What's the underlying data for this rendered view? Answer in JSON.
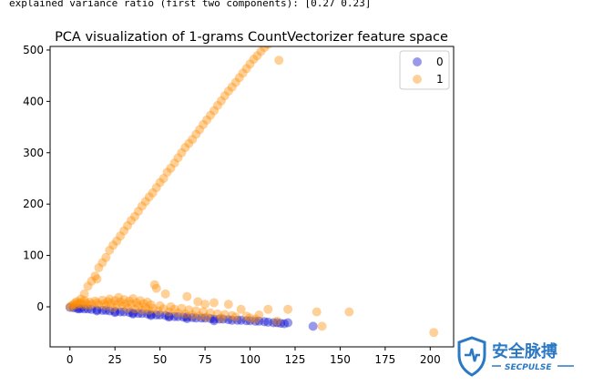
{
  "console": {
    "text": "explained variance ratio (first two components): [0.27 0.23]"
  },
  "watermark": {
    "main": "安全脉搏",
    "sub": "SECPULSE"
  },
  "colors": {
    "series0": "#0000cc",
    "series1": "#ff8c00",
    "axis": "#000000"
  },
  "chart_data": {
    "type": "scatter",
    "title": "PCA visualization of 1-grams CountVectorizer feature space",
    "xlabel": "",
    "ylabel": "",
    "xlim": [
      -11,
      213
    ],
    "ylim": [
      -78,
      507
    ],
    "xticks": [
      0,
      25,
      50,
      75,
      100,
      125,
      150,
      175,
      200
    ],
    "yticks": [
      0,
      100,
      200,
      300,
      400,
      500
    ],
    "grid": false,
    "legend": "top-right",
    "legend_entries": [
      "0",
      "1"
    ],
    "series": [
      {
        "name": "0",
        "color": "#0000cc",
        "alpha": 0.4,
        "points": [
          [
            0,
            -1
          ],
          [
            2,
            -2
          ],
          [
            4,
            -3
          ],
          [
            6,
            -3
          ],
          [
            8,
            -4
          ],
          [
            10,
            -4
          ],
          [
            12,
            -5
          ],
          [
            15,
            -6
          ],
          [
            18,
            -7
          ],
          [
            20,
            -7
          ],
          [
            22,
            -8
          ],
          [
            25,
            -9
          ],
          [
            28,
            -10
          ],
          [
            30,
            -10
          ],
          [
            33,
            -11
          ],
          [
            35,
            -12
          ],
          [
            38,
            -13
          ],
          [
            40,
            -13
          ],
          [
            43,
            -14
          ],
          [
            45,
            -15
          ],
          [
            48,
            -16
          ],
          [
            50,
            -16
          ],
          [
            53,
            -17
          ],
          [
            55,
            -18
          ],
          [
            58,
            -19
          ],
          [
            60,
            -19
          ],
          [
            63,
            -20
          ],
          [
            65,
            -20
          ],
          [
            68,
            -21
          ],
          [
            70,
            -22
          ],
          [
            73,
            -22
          ],
          [
            75,
            -22
          ],
          [
            78,
            -23
          ],
          [
            80,
            -24
          ],
          [
            83,
            -24
          ],
          [
            85,
            -24
          ],
          [
            88,
            -25
          ],
          [
            90,
            -26
          ],
          [
            93,
            -26
          ],
          [
            95,
            -26
          ],
          [
            98,
            -27
          ],
          [
            100,
            -27
          ],
          [
            103,
            -28
          ],
          [
            105,
            -28
          ],
          [
            108,
            -29
          ],
          [
            110,
            -30
          ],
          [
            113,
            -31
          ],
          [
            115,
            -31
          ],
          [
            117,
            -32
          ],
          [
            119,
            -33
          ],
          [
            121,
            -31
          ],
          [
            135,
            -38
          ],
          [
            5,
            -4
          ],
          [
            15,
            -8
          ],
          [
            25,
            -11
          ],
          [
            35,
            -14
          ],
          [
            45,
            -17
          ],
          [
            55,
            -20
          ],
          [
            65,
            -23
          ],
          [
            80,
            -27
          ]
        ]
      },
      {
        "name": "1",
        "color": "#ff8c00",
        "alpha": 0.4,
        "points": [
          [
            0,
            0
          ],
          [
            1,
            2
          ],
          [
            2,
            5
          ],
          [
            3,
            3
          ],
          [
            4,
            10
          ],
          [
            5,
            6
          ],
          [
            6,
            8
          ],
          [
            7,
            4
          ],
          [
            8,
            12
          ],
          [
            9,
            7
          ],
          [
            10,
            3
          ],
          [
            11,
            9
          ],
          [
            12,
            5
          ],
          [
            14,
            11
          ],
          [
            15,
            8
          ],
          [
            16,
            4
          ],
          [
            18,
            13
          ],
          [
            19,
            6
          ],
          [
            20,
            2
          ],
          [
            21,
            10
          ],
          [
            22,
            15
          ],
          [
            23,
            7
          ],
          [
            24,
            -2
          ],
          [
            25,
            12
          ],
          [
            26,
            4
          ],
          [
            27,
            18
          ],
          [
            28,
            9
          ],
          [
            29,
            1
          ],
          [
            30,
            14
          ],
          [
            31,
            6
          ],
          [
            32,
            -3
          ],
          [
            33,
            11
          ],
          [
            34,
            5
          ],
          [
            35,
            16
          ],
          [
            36,
            -4
          ],
          [
            37,
            8
          ],
          [
            38,
            2
          ],
          [
            39,
            12
          ],
          [
            40,
            -6
          ],
          [
            41,
            6
          ],
          [
            42,
            -1
          ],
          [
            43,
            9
          ],
          [
            44,
            -7
          ],
          [
            45,
            4
          ],
          [
            46,
            -3
          ],
          [
            47,
            43
          ],
          [
            48,
            36
          ],
          [
            49,
            -8
          ],
          [
            50,
            2
          ],
          [
            52,
            -4
          ],
          [
            53,
            25
          ],
          [
            55,
            -10
          ],
          [
            56,
            0
          ],
          [
            58,
            -5
          ],
          [
            60,
            -12
          ],
          [
            62,
            -3
          ],
          [
            64,
            -14
          ],
          [
            65,
            20
          ],
          [
            66,
            -6
          ],
          [
            68,
            -16
          ],
          [
            70,
            -8
          ],
          [
            71,
            10
          ],
          [
            72,
            -18
          ],
          [
            74,
            -10
          ],
          [
            75,
            5
          ],
          [
            76,
            -20
          ],
          [
            78,
            -12
          ],
          [
            80,
            8
          ],
          [
            82,
            -14
          ],
          [
            84,
            -22
          ],
          [
            86,
            -15
          ],
          [
            88,
            5
          ],
          [
            90,
            -17
          ],
          [
            92,
            -20
          ],
          [
            95,
            -5
          ],
          [
            98,
            -18
          ],
          [
            100,
            -22
          ],
          [
            103,
            -24
          ],
          [
            105,
            -16
          ],
          [
            110,
            -5
          ],
          [
            115,
            -28
          ],
          [
            121,
            -5
          ],
          [
            137,
            -10
          ],
          [
            140,
            -38
          ],
          [
            155,
            -10
          ],
          [
            202,
            -50
          ],
          [
            3,
            8
          ],
          [
            6,
            15
          ],
          [
            8,
            25
          ],
          [
            10,
            40
          ],
          [
            12,
            50
          ],
          [
            14,
            60
          ],
          [
            15,
            54
          ],
          [
            16,
            76
          ],
          [
            18,
            86
          ],
          [
            20,
            96
          ],
          [
            22,
            110
          ],
          [
            24,
            120
          ],
          [
            26,
            128
          ],
          [
            28,
            138
          ],
          [
            30,
            148
          ],
          [
            32,
            158
          ],
          [
            34,
            168
          ],
          [
            36,
            176
          ],
          [
            38,
            186
          ],
          [
            40,
            196
          ],
          [
            42,
            205
          ],
          [
            44,
            214
          ],
          [
            46,
            222
          ],
          [
            48,
            232
          ],
          [
            50,
            242
          ],
          [
            52,
            250
          ],
          [
            54,
            262
          ],
          [
            56,
            270
          ],
          [
            58,
            280
          ],
          [
            60,
            290
          ],
          [
            62,
            300
          ],
          [
            64,
            310
          ],
          [
            66,
            318
          ],
          [
            68,
            326
          ],
          [
            70,
            336
          ],
          [
            72,
            345
          ],
          [
            74,
            355
          ],
          [
            76,
            364
          ],
          [
            78,
            373
          ],
          [
            80,
            382
          ],
          [
            82,
            392
          ],
          [
            84,
            401
          ],
          [
            86,
            411
          ],
          [
            88,
            420
          ],
          [
            90,
            428
          ],
          [
            92,
            437
          ],
          [
            94,
            446
          ],
          [
            96,
            455
          ],
          [
            98,
            464
          ],
          [
            100,
            473
          ],
          [
            102,
            482
          ],
          [
            104,
            489
          ],
          [
            106,
            497
          ],
          [
            108,
            505
          ],
          [
            110,
            511
          ],
          [
            112,
            518
          ],
          [
            114,
            525
          ],
          [
            116,
            480
          ]
        ]
      }
    ]
  }
}
